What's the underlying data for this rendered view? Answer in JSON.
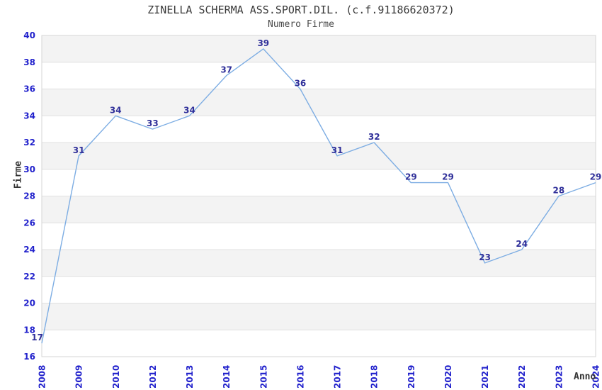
{
  "chart_data": {
    "type": "line",
    "title": "ZINELLA SCHERMA ASS.SPORT.DIL. (c.f.91186620372)",
    "subtitle": "Numero Firme",
    "xlabel": "Anno",
    "ylabel": "Firme",
    "categories": [
      "2008",
      "2009",
      "2010",
      "2012",
      "2013",
      "2014",
      "2015",
      "2016",
      "2017",
      "2018",
      "2019",
      "2020",
      "2021",
      "2022",
      "2023",
      "2024"
    ],
    "values": [
      17,
      31,
      34,
      33,
      34,
      37,
      39,
      36,
      31,
      32,
      29,
      29,
      23,
      24,
      28,
      29
    ],
    "ylim": [
      16,
      40
    ],
    "ytick_step": 2,
    "ytick_labels": [
      "16",
      "18",
      "20",
      "22",
      "24",
      "26",
      "28",
      "30",
      "32",
      "34",
      "36",
      "38",
      "40"
    ],
    "grid": "horizontal-bands-alternating",
    "legend_position": "none",
    "data_labels_shown": true,
    "colors": {
      "line": "#7dade3",
      "data_label": "#30309a",
      "tick_label": "#2222cc",
      "axis_title": "#333333",
      "title": "#3a3a3a",
      "subtitle": "#4a4a4a",
      "band_gray": "#f3f3f3",
      "band_white": "#ffffff",
      "gridline": "#e0e0e0",
      "plot_border": "#d4d4d4",
      "background": "#ffffff"
    }
  }
}
